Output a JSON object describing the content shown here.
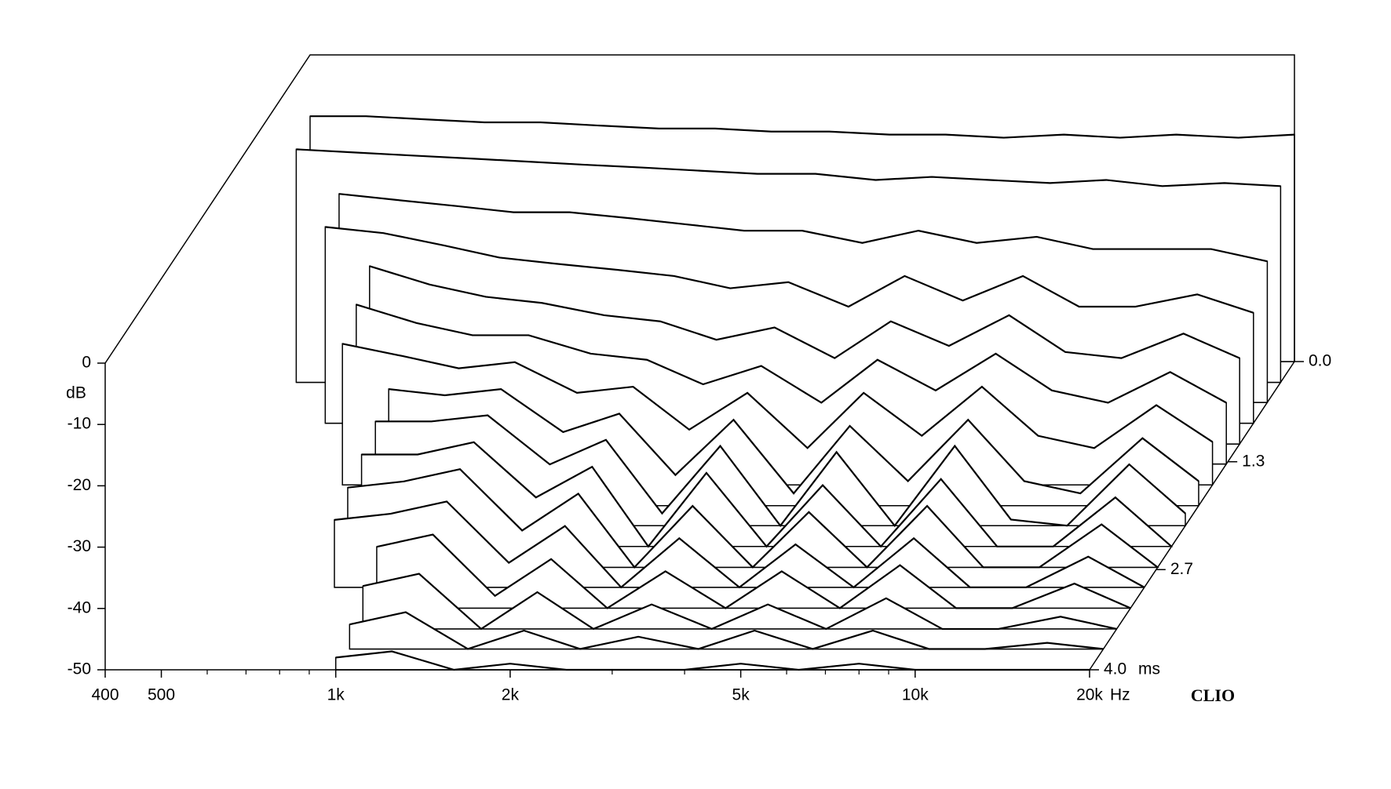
{
  "chart_data": {
    "type": "waterfall",
    "x_label": "Hz",
    "y_label": "dB",
    "z_label": "ms",
    "brand": "CLIO",
    "color": "#000000",
    "log_x": true,
    "x": [
      400,
      500,
      630,
      800,
      1000,
      1250,
      1600,
      2000,
      2500,
      3150,
      4000,
      5000,
      6300,
      8000,
      10000,
      12500,
      16000,
      20000
    ],
    "xlim": [
      400,
      20000
    ],
    "xticks": [
      400,
      500,
      {
        "value": 1000,
        "label": "1k"
      },
      {
        "value": 2000,
        "label": "2k"
      },
      {
        "value": 5000,
        "label": "5k"
      },
      {
        "value": 10000,
        "label": "10k"
      },
      {
        "value": 20000,
        "label": "20k"
      }
    ],
    "xminor": [
      600,
      700,
      800,
      900,
      3000,
      4000,
      6000,
      7000,
      8000,
      9000
    ],
    "ylim": [
      -50,
      0
    ],
    "yticks": [
      0,
      -10,
      -20,
      -30,
      -40,
      -50
    ],
    "zlim": [
      0,
      4
    ],
    "zticks": [
      {
        "value": 0,
        "label": "0.0"
      },
      1.3,
      2.7,
      {
        "value": 4,
        "label": "4.0"
      }
    ],
    "slices": [
      {
        "t": 0,
        "values": [
          -10,
          -10,
          -10.5,
          -11,
          -11,
          -11.5,
          -12,
          -12,
          -12.5,
          -12.5,
          -13,
          -13,
          -13.5,
          -13,
          -13.5,
          -13,
          -13.5,
          -13
        ]
      },
      {
        "t": 0.27,
        "values": [
          -12,
          -12.5,
          -13,
          -13.5,
          -14,
          -14.5,
          -15,
          -15.5,
          -16,
          -16,
          -17,
          -16.5,
          -17,
          -17.5,
          -17,
          -18,
          -17.5,
          -18
        ]
      },
      {
        "t": 0.53,
        "values": [
          null,
          -16,
          -17,
          -18,
          -19,
          -19,
          -20,
          -21,
          -22,
          -22,
          -24,
          -22,
          -24,
          -23,
          -25,
          -25,
          -25,
          -27
        ]
      },
      {
        "t": 0.8,
        "values": [
          null,
          -18,
          -19,
          -21,
          -23,
          -24,
          -25,
          -26,
          -28,
          -27,
          -31,
          -26,
          -30,
          -26,
          -31,
          -31,
          -29,
          -32
        ]
      },
      {
        "t": 1.07,
        "values": [
          null,
          null,
          -21,
          -24,
          -26,
          -27,
          -29,
          -30,
          -33,
          -31,
          -36,
          -30,
          -34,
          -29,
          -35,
          -36,
          -32,
          -36
        ]
      },
      {
        "t": 1.33,
        "values": [
          null,
          null,
          -24,
          -27,
          -29,
          -29,
          -32,
          -33,
          -37,
          -34,
          -40,
          -33,
          -38,
          -32,
          -38,
          -40,
          -35,
          -40
        ]
      },
      {
        "t": 1.6,
        "values": [
          null,
          null,
          -27,
          -29,
          -31,
          -30,
          -35,
          -34,
          -41,
          -35,
          -44,
          -35,
          -42,
          -34,
          -42,
          -44,
          -37,
          -43
        ]
      },
      {
        "t": 1.87,
        "values": [
          null,
          null,
          null,
          -31,
          -32,
          -31,
          -38,
          -35,
          -45,
          -36,
          -48,
          -37,
          -46,
          -36,
          -46,
          -48,
          -39,
          -46
        ]
      },
      {
        "t": 2.13,
        "values": [
          null,
          null,
          null,
          -33,
          -33,
          -32,
          -40,
          -36,
          -48,
          -37,
          -50,
          -38,
          -50,
          -37,
          -49,
          -50,
          -40,
          -48
        ]
      },
      {
        "t": 2.4,
        "values": [
          null,
          null,
          null,
          -35,
          -35,
          -33,
          -42,
          -37,
          -50,
          -38,
          -50,
          -40,
          -50,
          -39,
          -50,
          -50,
          -42,
          -50
        ]
      },
      {
        "t": 2.67,
        "values": [
          null,
          null,
          null,
          -37,
          -36,
          -34,
          -44,
          -38,
          -50,
          -40,
          -50,
          -41,
          -50,
          -40,
          -50,
          -50,
          -43,
          -50
        ]
      },
      {
        "t": 2.93,
        "values": [
          null,
          null,
          null,
          -39,
          -38,
          -36,
          -46,
          -40,
          -50,
          -42,
          -50,
          -43,
          -50,
          -42,
          -50,
          -50,
          -45,
          -50
        ]
      },
      {
        "t": 3.2,
        "values": [
          null,
          null,
          null,
          null,
          -40,
          -38,
          -48,
          -42,
          -50,
          -44,
          -50,
          -44,
          -50,
          -43,
          -50,
          -50,
          -46,
          -50
        ]
      },
      {
        "t": 3.47,
        "values": [
          null,
          null,
          null,
          null,
          -43,
          -41,
          -50,
          -44,
          -50,
          -46,
          -50,
          -46,
          -50,
          -45,
          -50,
          -50,
          -48,
          -50
        ]
      },
      {
        "t": 3.73,
        "values": [
          null,
          null,
          null,
          null,
          -46,
          -44,
          -50,
          -47,
          -50,
          -48,
          -50,
          -47,
          -50,
          -47,
          -50,
          -50,
          -49,
          -50
        ]
      },
      {
        "t": 4.0,
        "values": [
          null,
          null,
          null,
          null,
          -48,
          -47,
          -50,
          -49,
          -50,
          -50,
          -50,
          -49,
          -50,
          -49,
          -50,
          -50,
          -50,
          -50
        ]
      }
    ]
  }
}
